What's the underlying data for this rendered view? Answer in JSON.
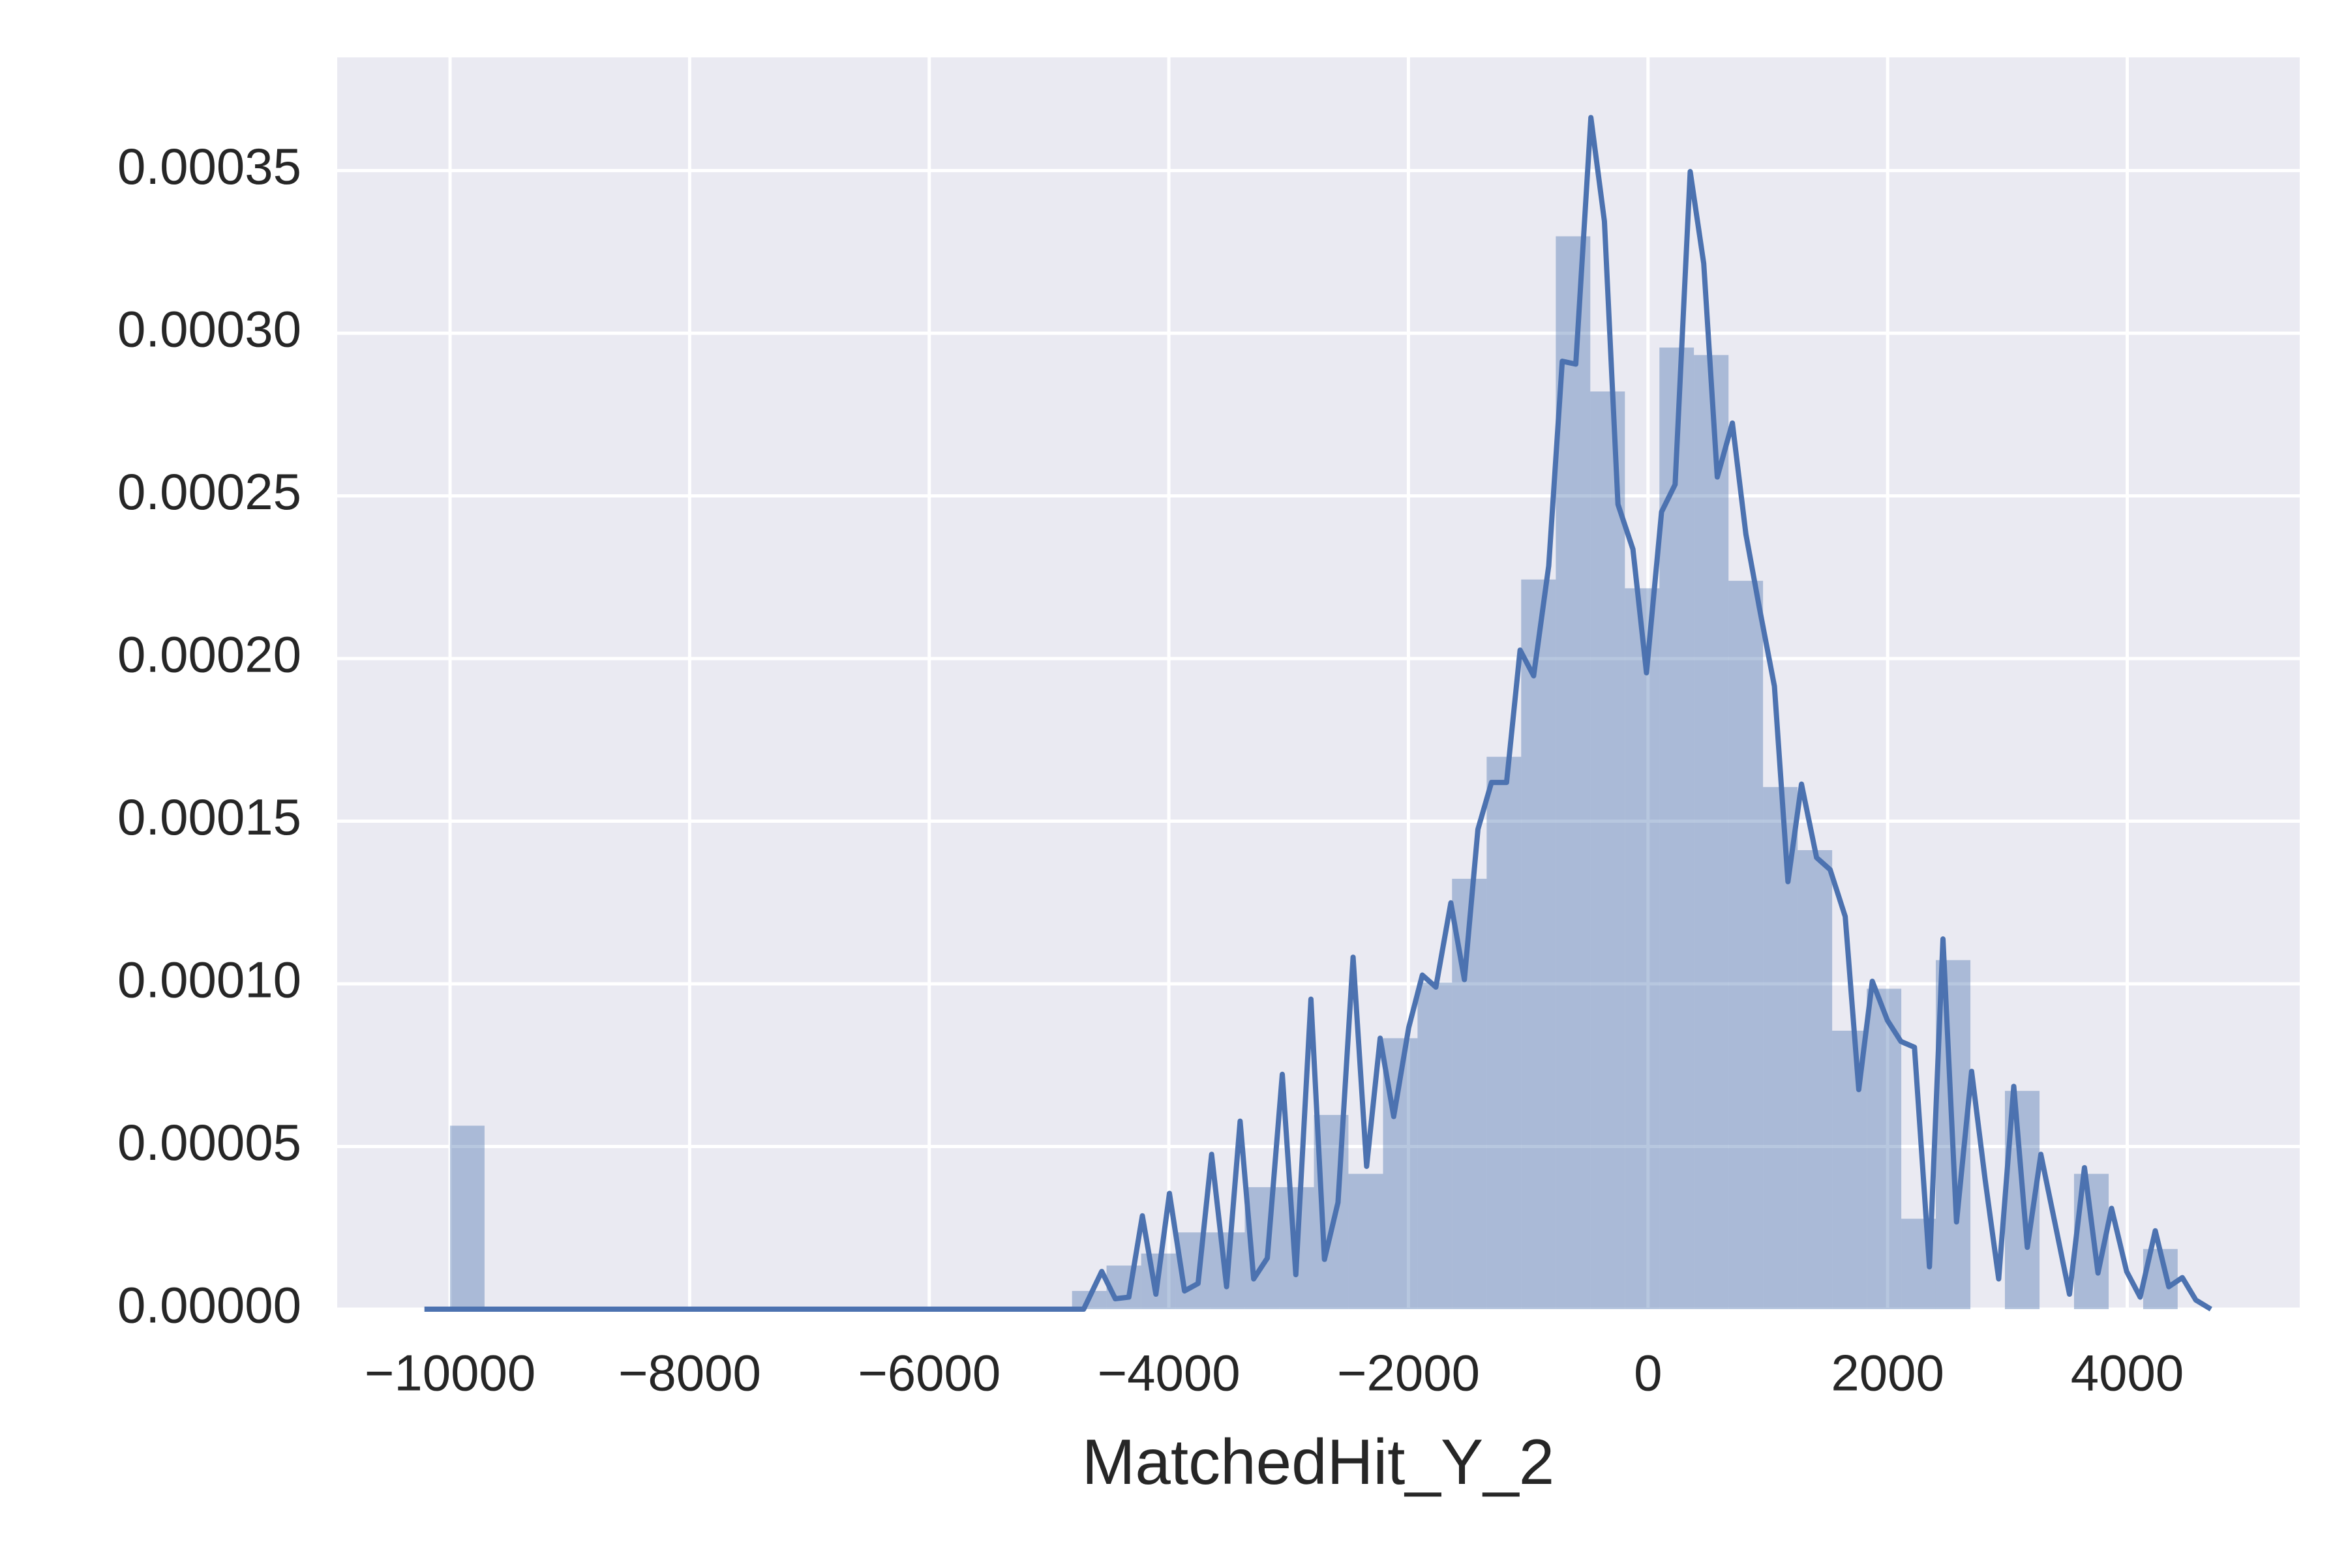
{
  "chart_data": {
    "type": "histogram",
    "xlabel": "MatchedHit_Y_2",
    "color": "#4c72b0",
    "bar_opacity": 0.4,
    "grid": true,
    "bins": [
      -10000,
      -9712,
      -9423,
      -9135,
      -8846,
      -8558,
      -8269,
      -7981,
      -7693,
      -7404,
      -7116,
      -6827,
      -6539,
      -6250,
      -5962,
      -5674,
      -5385,
      -5097,
      -4808,
      -4520,
      -4231,
      -3943,
      -3655,
      -3366,
      -3078,
      -2789,
      -2501,
      -2212,
      -1924,
      -1636,
      -1347,
      -1059,
      -770,
      -482,
      -193,
      95,
      383,
      672,
      960,
      1249,
      1537,
      1826,
      2114,
      2402,
      2691,
      2979,
      3268,
      3556,
      3845,
      4133,
      4421,
      4710
    ],
    "values": [
      5.64e-05,
      0,
      0,
      0,
      0,
      0,
      0,
      0,
      0,
      0,
      0,
      0,
      0,
      0,
      0,
      0,
      0,
      0,
      5.6e-06,
      1.34e-05,
      1.71e-05,
      2.36e-05,
      2.36e-05,
      3.75e-05,
      3.75e-05,
      5.97e-05,
      4.16e-05,
      8.33e-05,
      0.0001004,
      0.0001323,
      0.0001698,
      0.0002243,
      0.0003298,
      0.0002821,
      0.0002216,
      0.0002956,
      0.0002933,
      0.0002239,
      0.0001605,
      0.0001411,
      8.56e-05,
      9.85e-05,
      2.78e-05,
      0.0001073,
      0,
      6.71e-05,
      0,
      4.16e-05,
      0,
      1.85e-05,
      0
    ],
    "kde": {
      "color": "#4c72b0",
      "x": [
        -10214,
        -4711,
        -4560,
        -4447,
        -4334,
        -4221,
        -4108,
        -3995,
        -3869,
        -3756,
        -3643,
        -3518,
        -3405,
        -3292,
        -3178,
        -3053,
        -2940,
        -2814,
        -2701,
        -2588,
        -2462,
        -2349,
        -2236,
        -2123,
        -1998,
        -1884,
        -1771,
        -1646,
        -1533,
        -1420,
        -1307,
        -1181,
        -1068,
        -955,
        -829,
        -716,
        -603,
        -477,
        -364,
        -251,
        -126,
        -13,
        113,
        226,
        352,
        465,
        578,
        704,
        817,
        930,
        1055,
        1168,
        1281,
        1407,
        1520,
        1646,
        1759,
        1872,
        1998,
        2111,
        2224,
        2349,
        2462,
        2575,
        2701,
        2814,
        2927,
        3053,
        3166,
        3279,
        3405,
        3518,
        3643,
        3756,
        3869,
        3995,
        4108,
        4234,
        4347,
        4460,
        4573,
        4699
      ],
      "values": [
        0,
        0,
        1.16e-05,
        3.2e-06,
        3.7e-06,
        2.87e-05,
        4.6e-06,
        3.56e-05,
        5.6e-06,
        7.9e-06,
        4.76e-05,
        6.9e-06,
        5.78e-05,
        9.3e-06,
        1.57e-05,
        7.22e-05,
        1.06e-05,
        9.53e-05,
        1.53e-05,
        3.28e-05,
        0.0001082,
        4.39e-05,
        8.33e-05,
        5.92e-05,
        8.65e-05,
        0.0001027,
        9.9e-05,
        0.0001249,
        0.0001013,
        0.0001475,
        0.0001619,
        0.0001619,
        0.0002026,
        0.0001947,
        0.0002285,
        0.0002914,
        0.0002905,
        0.0003663,
        0.0003344,
        0.0002474,
        0.0002336,
        0.0001956,
        0.0002451,
        0.0002535,
        0.0003497,
        0.0003214,
        0.0002558,
        0.0002724,
        0.0002382,
        0.0002155,
        0.0001915,
        0.0001314,
        0.0001614,
        0.0001388,
        0.0001351,
        0.0001207,
        6.75e-05,
        0.0001008,
        8.88e-05,
        8.23e-05,
        8.05e-05,
        1.3e-05,
        0.0001138,
        2.68e-05,
        7.31e-05,
        3.98e-05,
        9.3e-06,
        6.85e-05,
        1.9e-05,
        4.76e-05,
        2.5e-05,
        4.6e-06,
        4.35e-05,
        1.11e-05,
        3.1e-05,
        1.16e-05,
        3.7e-06,
        2.41e-05,
        6.9e-06,
        9.7e-06,
        2.8e-06,
        0
      ]
    },
    "xlim": [
      -10942,
      5440
    ],
    "ylim": [
      0,
      0.0003848
    ],
    "xticks": [
      {
        "value": -10000,
        "label": "−10000"
      },
      {
        "value": -8000,
        "label": "−8000"
      },
      {
        "value": -6000,
        "label": "−6000"
      },
      {
        "value": -4000,
        "label": "−4000"
      },
      {
        "value": -2000,
        "label": "−2000"
      },
      0,
      2000,
      4000
    ],
    "yticks": [
      {
        "value": 0,
        "label": "0.00000"
      },
      5e-05,
      {
        "value": 0.0001,
        "label": "0.00010"
      },
      0.00015,
      {
        "value": 0.0002,
        "label": "0.00020"
      },
      0.00025,
      {
        "value": 0.0003,
        "label": "0.00030"
      },
      0.00035
    ]
  }
}
